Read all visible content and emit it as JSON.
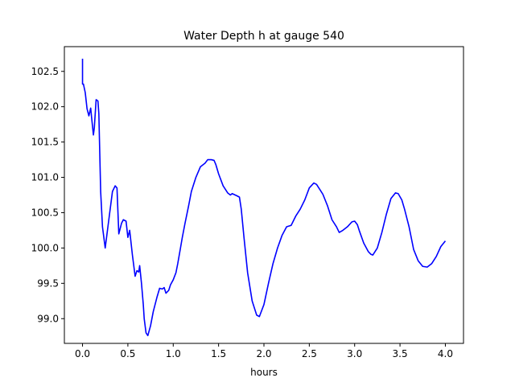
{
  "chart_data": {
    "type": "line",
    "title": "Water Depth h at gauge 540",
    "xlabel": "hours",
    "ylabel": "",
    "xlim": [
      -0.2,
      4.2
    ],
    "ylim": [
      98.65,
      102.85
    ],
    "xticks": [
      0.0,
      0.5,
      1.0,
      1.5,
      2.0,
      2.5,
      3.0,
      3.5,
      4.0
    ],
    "xtick_labels": [
      "0.0",
      "0.5",
      "1.0",
      "1.5",
      "2.0",
      "2.5",
      "3.0",
      "3.5",
      "4.0"
    ],
    "yticks": [
      99.0,
      99.5,
      100.0,
      100.5,
      101.0,
      101.5,
      102.0,
      102.5
    ],
    "ytick_labels": [
      "99.0",
      "99.5",
      "100.0",
      "100.5",
      "101.0",
      "101.5",
      "102.0",
      "102.5"
    ],
    "grid": false,
    "legend": "none",
    "series": [
      {
        "color": "#0000ff",
        "x": [
          0.0,
          0.0,
          0.01,
          0.03,
          0.05,
          0.07,
          0.09,
          0.1,
          0.12,
          0.13,
          0.15,
          0.17,
          0.18,
          0.2,
          0.22,
          0.25,
          0.27,
          0.3,
          0.33,
          0.36,
          0.38,
          0.4,
          0.42,
          0.43,
          0.45,
          0.48,
          0.5,
          0.52,
          0.55,
          0.57,
          0.58,
          0.6,
          0.62,
          0.63,
          0.65,
          0.67,
          0.68,
          0.7,
          0.72,
          0.75,
          0.78,
          0.8,
          0.82,
          0.85,
          0.88,
          0.9,
          0.92,
          0.95,
          0.97,
          1.0,
          1.03,
          1.05,
          1.08,
          1.1,
          1.13,
          1.17,
          1.2,
          1.25,
          1.3,
          1.35,
          1.38,
          1.42,
          1.45,
          1.47,
          1.5,
          1.55,
          1.6,
          1.63,
          1.65,
          1.7,
          1.73,
          1.75,
          1.78,
          1.82,
          1.87,
          1.92,
          1.95,
          2.0,
          2.05,
          2.1,
          2.15,
          2.2,
          2.25,
          2.3,
          2.35,
          2.4,
          2.45,
          2.5,
          2.55,
          2.58,
          2.62,
          2.65,
          2.7,
          2.75,
          2.8,
          2.83,
          2.87,
          2.92,
          2.97,
          3.0,
          3.03,
          3.05,
          3.1,
          3.15,
          3.18,
          3.2,
          3.25,
          3.3,
          3.35,
          3.4,
          3.45,
          3.48,
          3.52,
          3.55,
          3.6,
          3.65,
          3.7,
          3.75,
          3.8,
          3.85,
          3.9,
          3.95,
          4.0
        ],
        "y": [
          102.68,
          102.32,
          102.32,
          102.2,
          101.97,
          101.87,
          101.98,
          101.85,
          101.6,
          101.7,
          102.1,
          102.08,
          101.9,
          100.8,
          100.3,
          100.0,
          100.2,
          100.5,
          100.8,
          100.88,
          100.85,
          100.2,
          100.3,
          100.35,
          100.4,
          100.38,
          100.15,
          100.25,
          99.9,
          99.7,
          99.6,
          99.68,
          99.66,
          99.75,
          99.5,
          99.2,
          99.0,
          98.8,
          98.76,
          98.9,
          99.1,
          99.2,
          99.3,
          99.43,
          99.42,
          99.44,
          99.36,
          99.4,
          99.48,
          99.55,
          99.65,
          99.78,
          100.0,
          100.15,
          100.35,
          100.6,
          100.8,
          101.0,
          101.15,
          101.2,
          101.25,
          101.25,
          101.24,
          101.18,
          101.05,
          100.88,
          100.78,
          100.75,
          100.77,
          100.74,
          100.72,
          100.55,
          100.15,
          99.65,
          99.25,
          99.05,
          99.03,
          99.2,
          99.5,
          99.78,
          100.0,
          100.18,
          100.3,
          100.32,
          100.45,
          100.55,
          100.68,
          100.85,
          100.92,
          100.9,
          100.82,
          100.76,
          100.6,
          100.4,
          100.3,
          100.22,
          100.25,
          100.3,
          100.37,
          100.38,
          100.33,
          100.25,
          100.07,
          99.95,
          99.91,
          99.9,
          100.0,
          100.22,
          100.48,
          100.7,
          100.78,
          100.77,
          100.68,
          100.55,
          100.3,
          99.98,
          99.82,
          99.74,
          99.73,
          99.78,
          99.88,
          100.02,
          100.1
        ]
      }
    ]
  }
}
